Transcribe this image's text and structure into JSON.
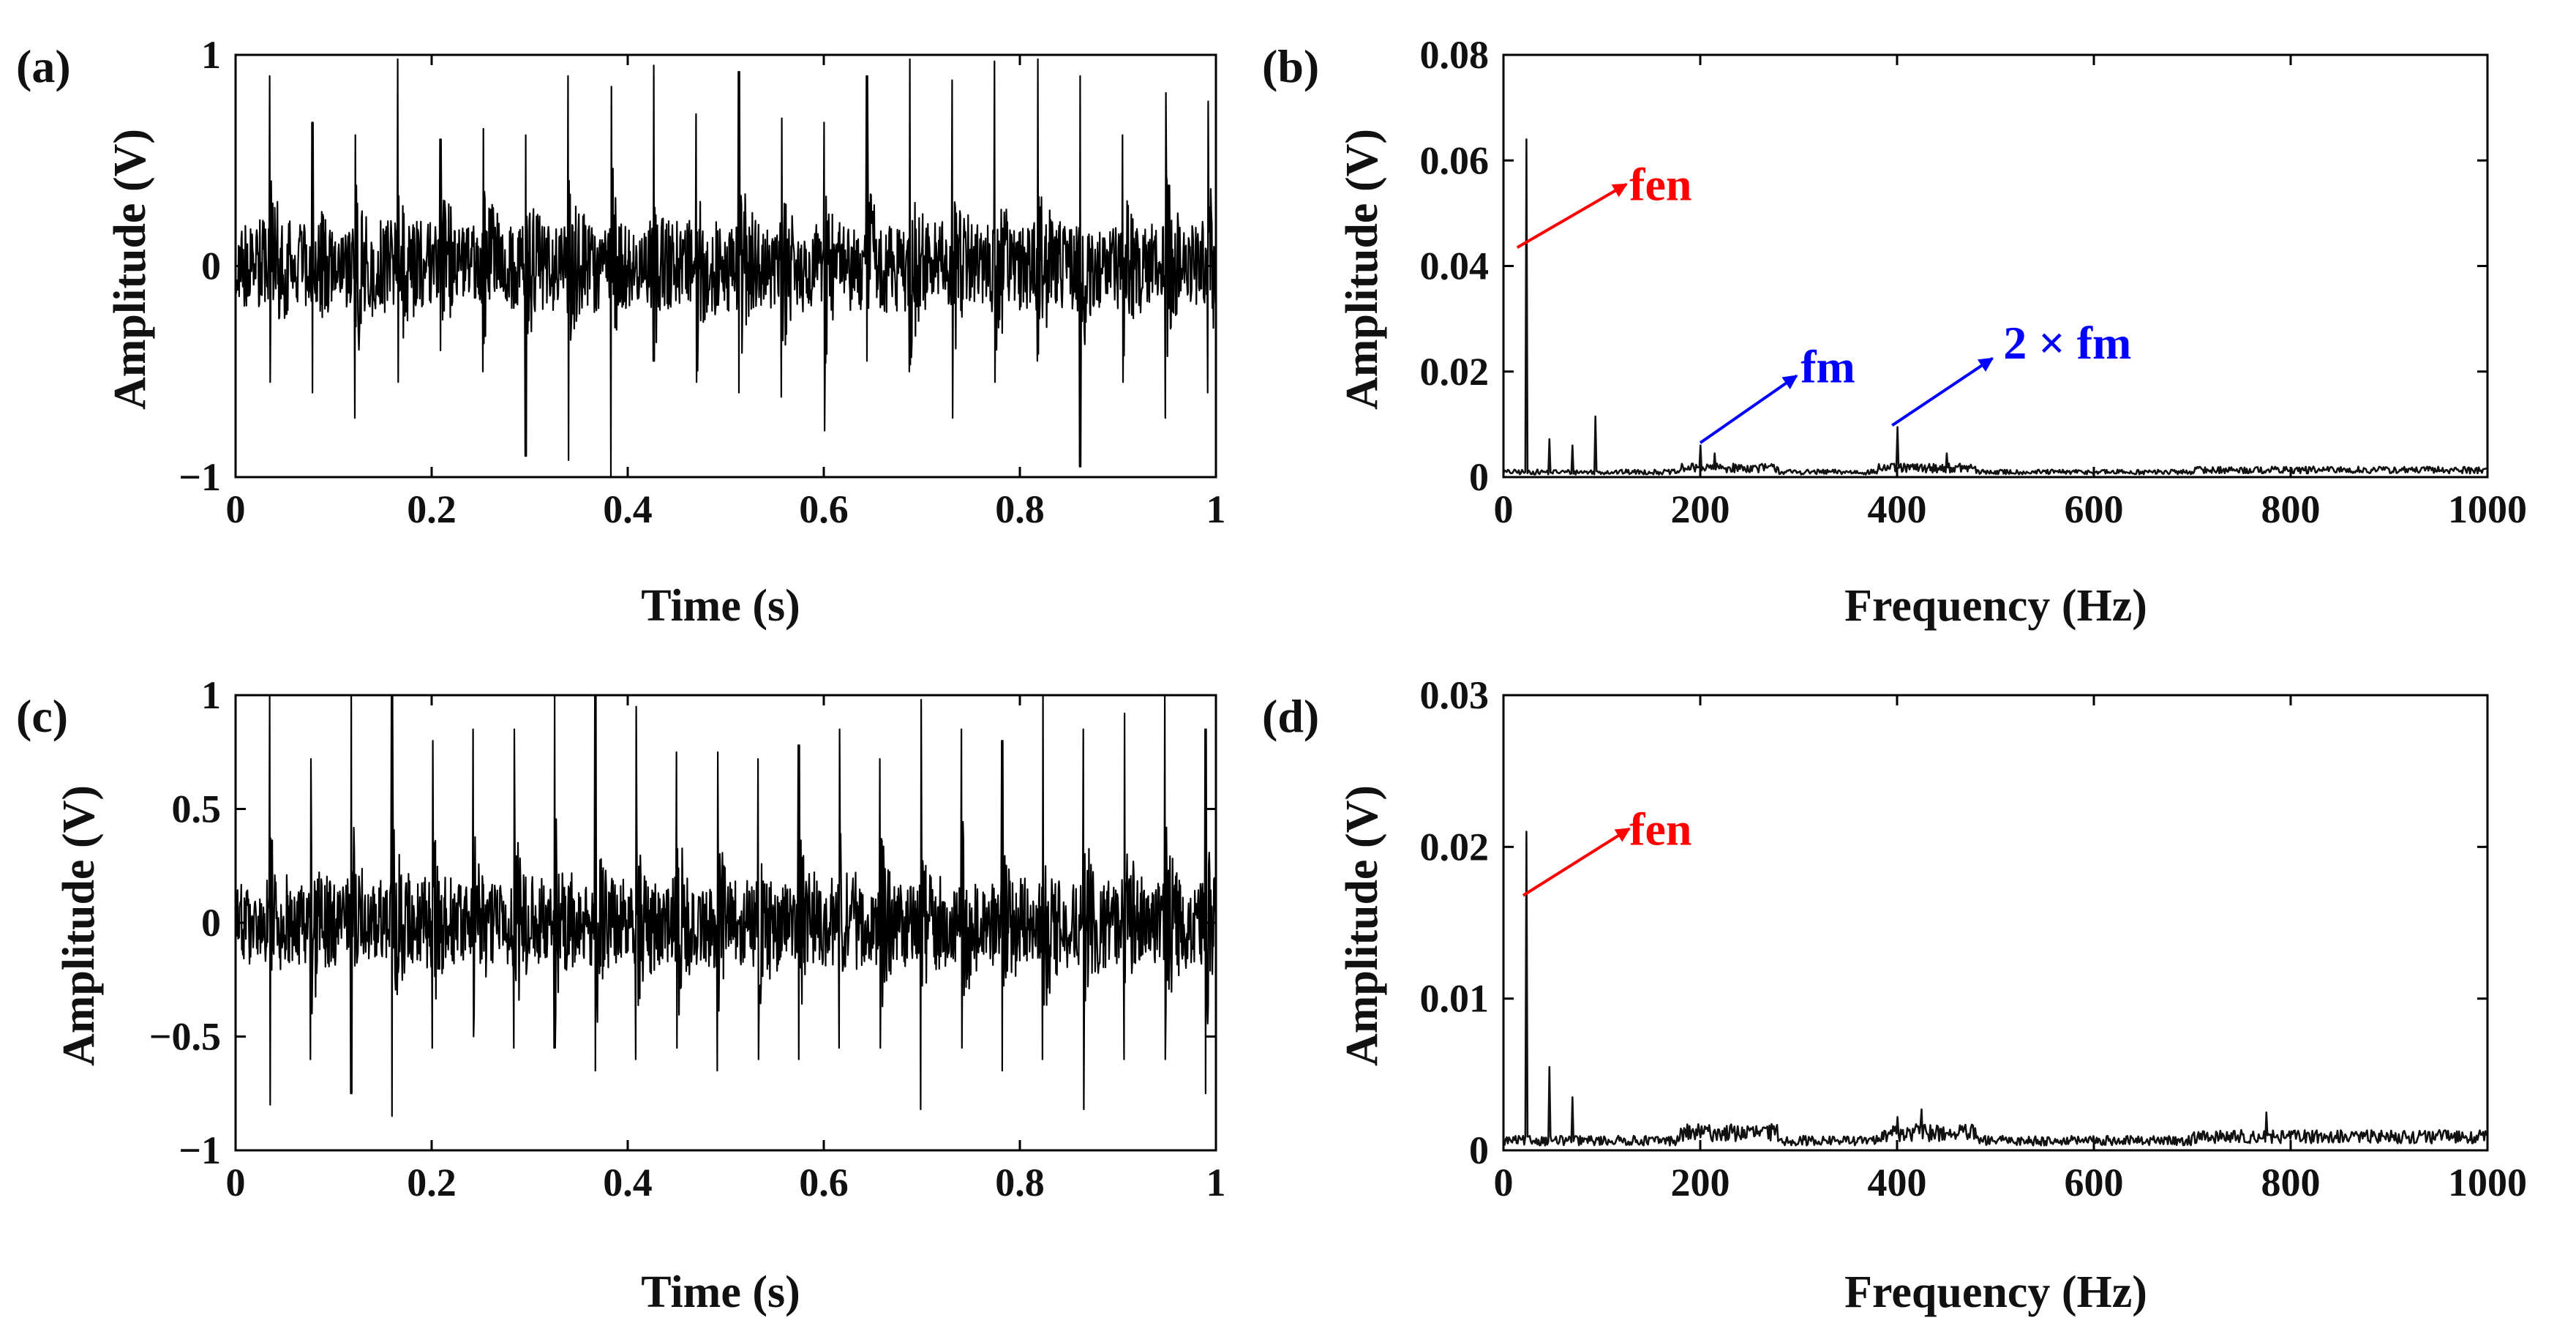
{
  "chart_data": [
    {
      "id": "a",
      "panel_label": "(a)",
      "type": "line",
      "description_source": "time-domain signal",
      "xlabel": "Time (s)",
      "ylabel": "Amplitude (V)",
      "xlim": [
        0,
        1
      ],
      "ylim": [
        -1,
        1
      ],
      "xticks": [
        0,
        0.2,
        0.4,
        0.6,
        0.8,
        1
      ],
      "xtick_labels": [
        "0",
        "0.2",
        "0.4",
        "0.6",
        "0.8",
        "1"
      ],
      "yticks": [
        -1,
        0,
        1
      ],
      "ytick_labels": [
        "−1",
        "0",
        "1"
      ],
      "impulse_period_s": 0.0435,
      "impulse_first_s": 0.035,
      "impulse_peaks": [
        0.9,
        0.68,
        0.62,
        0.98,
        0.6,
        0.65,
        0.62,
        0.9,
        0.85,
        0.95,
        0.72,
        0.92,
        0.7,
        0.68,
        0.9,
        0.98,
        0.88,
        0.97,
        0.98,
        0.9,
        0.62,
        0.82,
        0.78
      ],
      "impulse_troughs": [
        -0.55,
        -0.6,
        -0.72,
        -0.55,
        -0.4,
        -0.5,
        -0.9,
        -0.92,
        -1.0,
        -0.45,
        -0.55,
        -0.6,
        -0.62,
        -0.78,
        -0.45,
        -0.5,
        -0.72,
        -0.55,
        -0.45,
        -0.95,
        -0.55,
        -0.72,
        -0.6
      ],
      "noise_amplitude_v": 0.22
    },
    {
      "id": "b",
      "panel_label": "(b)",
      "type": "line",
      "description_source": "frequency spectrum",
      "xlabel": "Frequency (Hz)",
      "ylabel": "Amplitude (V)",
      "xlim": [
        0,
        1000
      ],
      "ylim": [
        0,
        0.08
      ],
      "xticks": [
        0,
        200,
        400,
        600,
        800,
        1000
      ],
      "xtick_labels": [
        "0",
        "200",
        "400",
        "600",
        "800",
        "1000"
      ],
      "yticks": [
        0,
        0.02,
        0.04,
        0.06,
        0.08
      ],
      "ytick_labels": [
        "0",
        "0.02",
        "0.04",
        "0.06",
        "0.08"
      ],
      "peaks": [
        {
          "freq": 23,
          "amp": 0.064
        },
        {
          "freq": 47,
          "amp": 0.0072
        },
        {
          "freq": 70,
          "amp": 0.006
        },
        {
          "freq": 93,
          "amp": 0.0115
        },
        {
          "freq": 200,
          "amp": 0.006
        },
        {
          "freq": 215,
          "amp": 0.0045
        },
        {
          "freq": 400,
          "amp": 0.0095
        },
        {
          "freq": 450,
          "amp": 0.0045
        }
      ],
      "noise_floor_v": 0.0012,
      "annotations": [
        {
          "text": "fen",
          "color": "#ff0000",
          "arrow_from": [
            14,
            0.0435
          ],
          "arrow_to": [
            125,
            0.0555
          ],
          "text_at": [
            128,
            0.0555
          ]
        },
        {
          "text": "fm",
          "color": "#0000ff",
          "arrow_from": [
            200,
            0.0065
          ],
          "arrow_to": [
            298,
            0.0192
          ],
          "text_at": [
            302,
            0.021
          ]
        },
        {
          "text": "2 × fm",
          "color": "#0000ff",
          "arrow_from": [
            395,
            0.0098
          ],
          "arrow_to": [
            497,
            0.0225
          ],
          "text_at": [
            508,
            0.0255
          ]
        }
      ]
    },
    {
      "id": "c",
      "panel_label": "(c)",
      "type": "line",
      "description_source": "time-domain signal",
      "xlabel": "Time (s)",
      "ylabel": "Amplitude (V)",
      "xlim": [
        0,
        1
      ],
      "ylim": [
        -1,
        1
      ],
      "xticks": [
        0,
        0.2,
        0.4,
        0.6,
        0.8,
        1
      ],
      "xtick_labels": [
        "0",
        "0.2",
        "0.4",
        "0.6",
        "0.8",
        "1"
      ],
      "yticks": [
        -1,
        -0.5,
        0,
        0.5,
        1
      ],
      "ytick_labels": [
        "−1",
        "−0.5",
        "0",
        "0.5",
        "1"
      ],
      "impulse_period_s": 0.0415,
      "impulse_first_s": 0.035,
      "impulse_peaks": [
        1.0,
        0.72,
        1.0,
        1.0,
        0.8,
        0.85,
        0.85,
        1.0,
        1.0,
        0.95,
        0.75,
        0.75,
        0.72,
        0.78,
        0.85,
        0.72,
        0.98,
        0.85,
        0.8,
        1.0,
        0.85,
        0.92,
        1.0,
        0.85
      ],
      "impulse_troughs": [
        -0.8,
        -0.6,
        -0.75,
        -0.85,
        -0.55,
        -0.5,
        -0.55,
        -0.55,
        -0.65,
        -0.6,
        -0.55,
        -0.65,
        -0.6,
        -0.6,
        -0.55,
        -0.55,
        -0.82,
        -0.55,
        -0.65,
        -0.6,
        -0.82,
        -0.6,
        -0.6,
        -0.75
      ],
      "noise_amplitude_v": 0.2
    },
    {
      "id": "d",
      "panel_label": "(d)",
      "type": "line",
      "description_source": "frequency spectrum",
      "xlabel": "Frequency (Hz)",
      "ylabel": "Amplitude (V)",
      "xlim": [
        0,
        1000
      ],
      "ylim": [
        0,
        0.03
      ],
      "xticks": [
        0,
        200,
        400,
        600,
        800,
        1000
      ],
      "xtick_labels": [
        "0",
        "200",
        "400",
        "600",
        "800",
        "1000"
      ],
      "yticks": [
        0,
        0.01,
        0.02,
        0.03
      ],
      "ytick_labels": [
        "0",
        "0.01",
        "0.02",
        "0.03"
      ],
      "peaks": [
        {
          "freq": 23,
          "amp": 0.021
        },
        {
          "freq": 47,
          "amp": 0.0055
        },
        {
          "freq": 70,
          "amp": 0.0035
        },
        {
          "freq": 400,
          "amp": 0.0022
        },
        {
          "freq": 425,
          "amp": 0.0027
        },
        {
          "freq": 775,
          "amp": 0.0025
        }
      ],
      "noise_floor_v": 0.0008,
      "annotations": [
        {
          "text": "fen",
          "color": "#ff0000",
          "arrow_from": [
            20,
            0.0168
          ],
          "arrow_to": [
            128,
            0.0212
          ],
          "text_at": [
            128,
            0.0212
          ]
        }
      ]
    }
  ]
}
